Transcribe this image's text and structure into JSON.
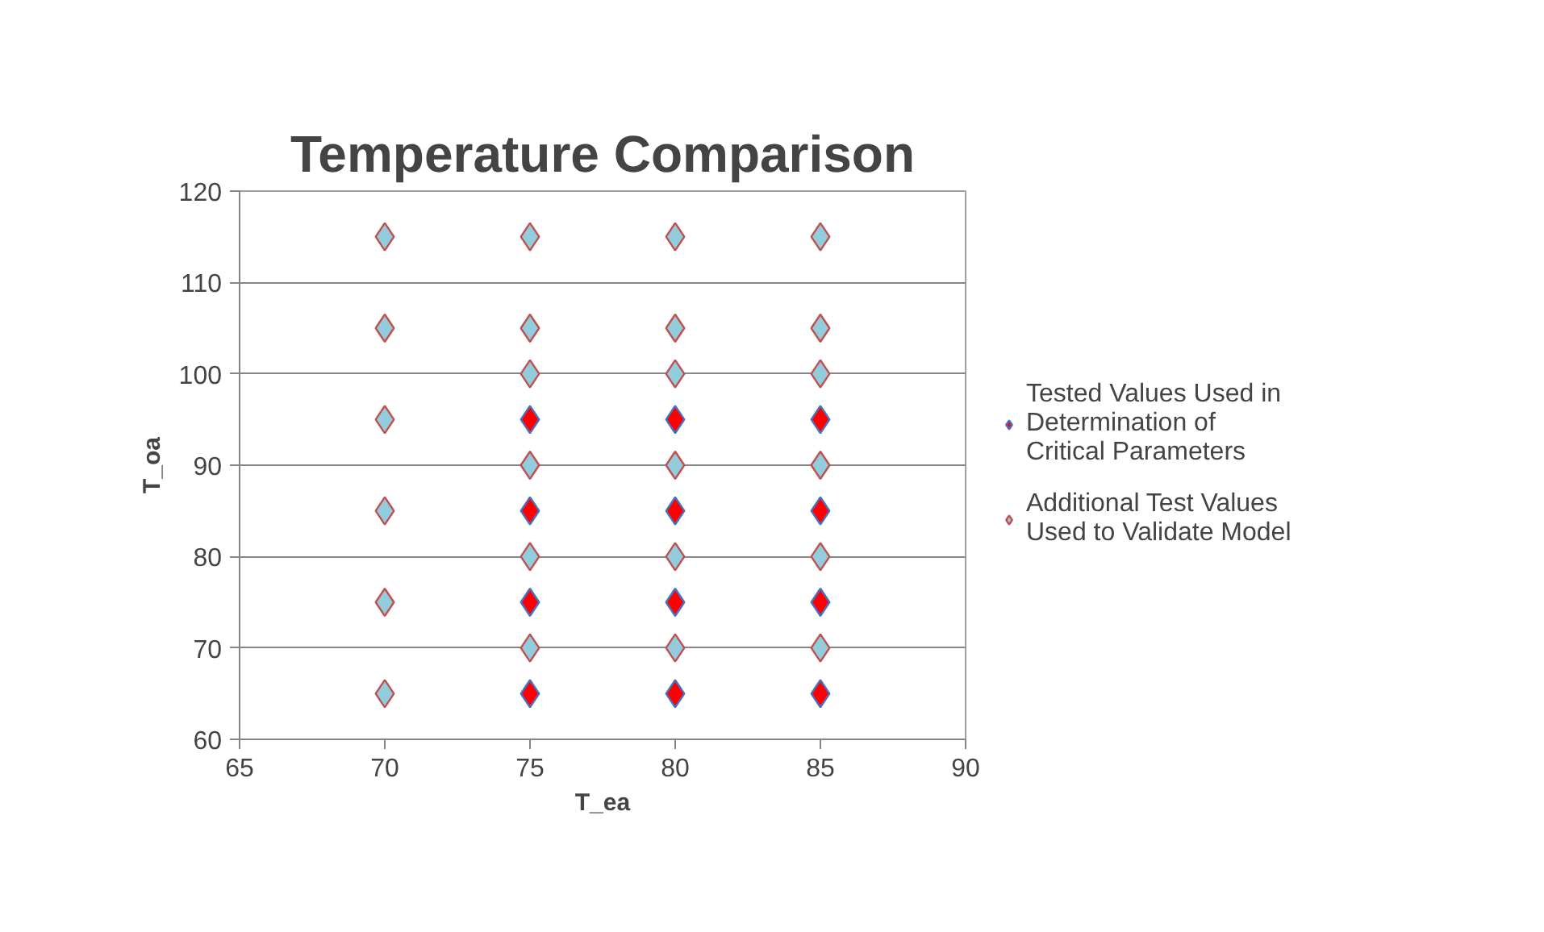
{
  "chart_data": {
    "type": "scatter",
    "title": "Temperature Comparison",
    "xlabel": "T_ea",
    "ylabel": "T_oa",
    "xlim": [
      65,
      90
    ],
    "xticks": [
      65,
      70,
      75,
      80,
      85,
      90
    ],
    "ylim": [
      60,
      120
    ],
    "yticks": [
      60,
      70,
      80,
      90,
      100,
      110,
      120
    ],
    "grid": "y",
    "legend": "right",
    "marker": "diamond",
    "series": [
      {
        "name": "Tested Values Used in Determination of Critical Parameters",
        "color": "#ff0000",
        "x": [
          75,
          75,
          75,
          75,
          80,
          80,
          80,
          80,
          85,
          85,
          85,
          85
        ],
        "values": [
          65,
          75,
          85,
          95,
          65,
          75,
          85,
          95,
          65,
          75,
          85,
          95
        ]
      },
      {
        "name": "Additional Test Values Used to Validate Model",
        "color": "#93cddd",
        "x": [
          70,
          70,
          70,
          70,
          70,
          70,
          75,
          75,
          75,
          75,
          75,
          75,
          80,
          80,
          80,
          80,
          80,
          80,
          85,
          85,
          85,
          85,
          85,
          85
        ],
        "values": [
          65,
          75,
          85,
          95,
          105,
          115,
          70,
          80,
          90,
          100,
          105,
          115,
          70,
          80,
          90,
          100,
          105,
          115,
          70,
          80,
          90,
          100,
          105,
          115
        ]
      }
    ]
  }
}
